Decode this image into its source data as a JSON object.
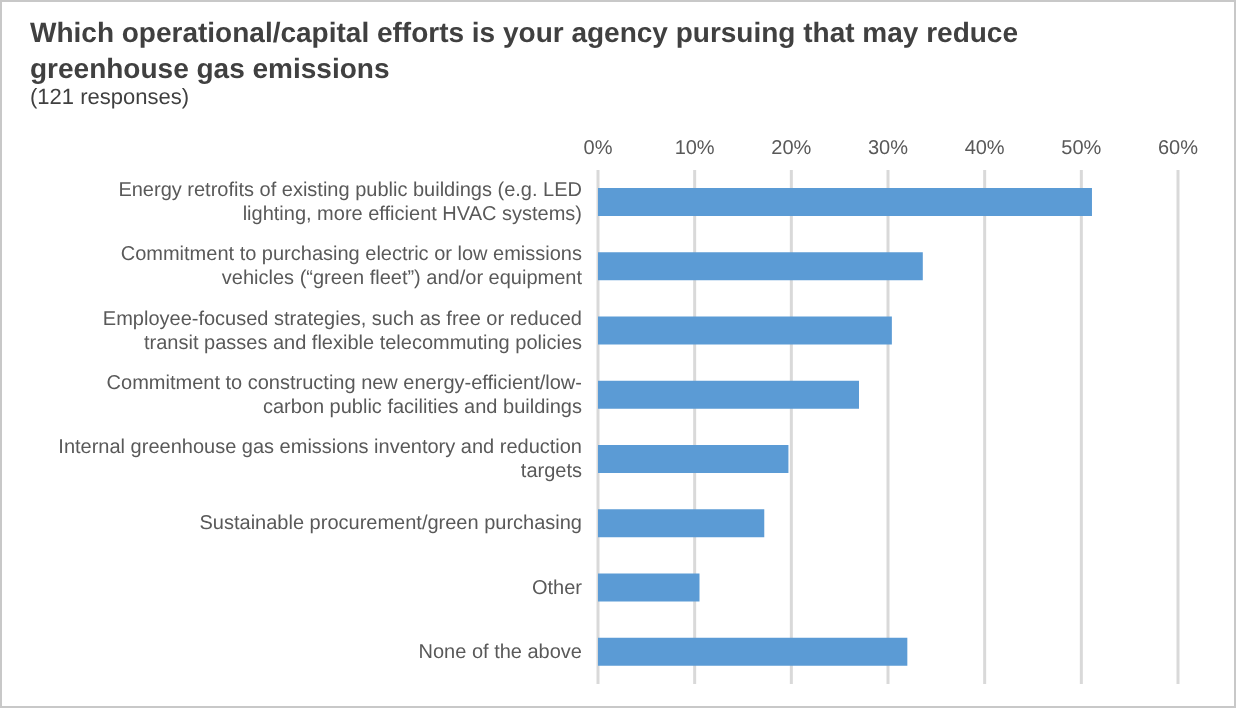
{
  "chart_data": {
    "type": "bar",
    "orientation": "horizontal",
    "title": "Which operational/capital efforts is your agency pursuing that may reduce greenhouse gas emissions",
    "subtitle": "(121 responses)",
    "categories": [
      "Energy retrofits of existing public buildings (e.g. LED lighting, more efficient HVAC systems)",
      "Commitment to purchasing electric or low emissions vehicles (“green fleet”) and/or equipment",
      "Employee-focused strategies, such as free or reduced transit passes and flexible telecommuting policies",
      "Commitment to constructing new energy-efficient/low-carbon public facilities and buildings",
      "Internal greenhouse gas emissions inventory and reduction targets",
      "Sustainable procurement/green purchasing",
      "Other",
      "None of the above"
    ],
    "values": [
      51.1,
      33.6,
      30.4,
      27.0,
      19.7,
      17.2,
      10.5,
      32.0
    ],
    "color": "#5b9bd5",
    "xlim": [
      0,
      60
    ],
    "xticks": [
      {
        "value": 0,
        "label": "0%"
      },
      {
        "value": 10,
        "label": "10%"
      },
      {
        "value": 20,
        "label": "20%"
      },
      {
        "value": 30,
        "label": "30%"
      },
      {
        "value": 40,
        "label": "40%"
      },
      {
        "value": 50,
        "label": "50%"
      },
      {
        "value": 60,
        "label": "60%"
      }
    ],
    "grid": "x"
  }
}
